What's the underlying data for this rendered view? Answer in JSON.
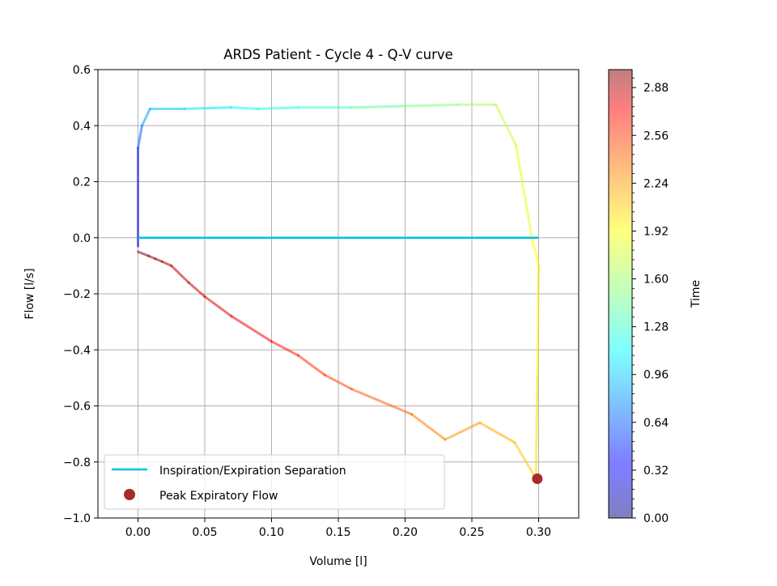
{
  "chart_data": {
    "type": "line",
    "title": "ARDS Patient - Cycle 4 - Q-V curve",
    "xlabel": "Volume [l]",
    "ylabel": "Flow [l/s]",
    "xlim": [
      -0.03,
      0.33
    ],
    "ylim": [
      -1.0,
      0.6
    ],
    "xticks": [
      0.0,
      0.05,
      0.1,
      0.15,
      0.2,
      0.25,
      0.3
    ],
    "xtick_labels": [
      "0.00",
      "0.05",
      "0.10",
      "0.15",
      "0.20",
      "0.25",
      "0.30"
    ],
    "yticks": [
      -1.0,
      -0.8,
      -0.6,
      -0.4,
      -0.2,
      0.0,
      0.2,
      0.4,
      0.6
    ],
    "ytick_labels": [
      "−1.0",
      "−0.8",
      "−0.6",
      "−0.4",
      "−0.2",
      "0.0",
      "0.2",
      "0.4",
      "0.6"
    ],
    "grid": true,
    "legend_position": "lower-left",
    "curve": {
      "color_by": "time",
      "points": [
        {
          "volume": 0.0,
          "flow": -0.03,
          "time": 0.0
        },
        {
          "volume": 0.0,
          "flow": 0.32,
          "time": 0.55
        },
        {
          "volume": 0.003,
          "flow": 0.4,
          "time": 0.75
        },
        {
          "volume": 0.009,
          "flow": 0.46,
          "time": 0.9
        },
        {
          "volume": 0.035,
          "flow": 0.46,
          "time": 1.0
        },
        {
          "volume": 0.07,
          "flow": 0.465,
          "time": 1.1
        },
        {
          "volume": 0.09,
          "flow": 0.46,
          "time": 1.15
        },
        {
          "volume": 0.12,
          "flow": 0.465,
          "time": 1.25
        },
        {
          "volume": 0.16,
          "flow": 0.465,
          "time": 1.35
        },
        {
          "volume": 0.2,
          "flow": 0.47,
          "time": 1.45
        },
        {
          "volume": 0.24,
          "flow": 0.475,
          "time": 1.55
        },
        {
          "volume": 0.268,
          "flow": 0.475,
          "time": 1.65
        },
        {
          "volume": 0.283,
          "flow": 0.33,
          "time": 1.75
        },
        {
          "volume": 0.295,
          "flow": 0.0,
          "time": 1.85
        },
        {
          "volume": 0.3,
          "flow": -0.1,
          "time": 1.9
        },
        {
          "volume": 0.299,
          "flow": -0.5,
          "time": 1.95
        },
        {
          "volume": 0.298,
          "flow": -0.86,
          "time": 2.0
        },
        {
          "volume": 0.282,
          "flow": -0.73,
          "time": 2.08
        },
        {
          "volume": 0.256,
          "flow": -0.66,
          "time": 2.15
        },
        {
          "volume": 0.23,
          "flow": -0.72,
          "time": 2.22
        },
        {
          "volume": 0.205,
          "flow": -0.63,
          "time": 2.3
        },
        {
          "volume": 0.16,
          "flow": -0.54,
          "time": 2.4
        },
        {
          "volume": 0.14,
          "flow": -0.49,
          "time": 2.45
        },
        {
          "volume": 0.12,
          "flow": -0.42,
          "time": 2.52
        },
        {
          "volume": 0.1,
          "flow": -0.37,
          "time": 2.6
        },
        {
          "volume": 0.07,
          "flow": -0.28,
          "time": 2.68
        },
        {
          "volume": 0.05,
          "flow": -0.21,
          "time": 2.75
        },
        {
          "volume": 0.038,
          "flow": -0.16,
          "time": 2.8
        },
        {
          "volume": 0.025,
          "flow": -0.1,
          "time": 2.86
        },
        {
          "volume": 0.018,
          "flow": -0.085,
          "time": 2.9
        },
        {
          "volume": 0.013,
          "flow": -0.075,
          "time": 2.93
        },
        {
          "volume": 0.008,
          "flow": -0.065,
          "time": 2.95
        },
        {
          "volume": 0.0,
          "flow": -0.05,
          "time": 3.0
        }
      ]
    },
    "series": [
      {
        "name": "Inspiration/Expiration Separation",
        "color": "#00bfe6",
        "x": [
          0.0,
          0.3
        ],
        "y": [
          0.0,
          0.0
        ]
      }
    ],
    "scatter": {
      "name": "Peak Expiratory Flow",
      "color": "#a82a2a",
      "x": [
        0.299
      ],
      "y": [
        -0.86
      ]
    },
    "colorbar": {
      "label": "Time",
      "colormap": "jet",
      "alpha": 0.5,
      "range": [
        0.0,
        3.0
      ],
      "ticks": [
        0.0,
        0.32,
        0.64,
        0.96,
        1.28,
        1.6,
        1.92,
        2.24,
        2.56,
        2.88
      ],
      "tick_labels": [
        "0.00",
        "0.32",
        "0.64",
        "0.96",
        "1.28",
        "1.60",
        "1.92",
        "2.24",
        "2.56",
        "2.88"
      ]
    }
  }
}
